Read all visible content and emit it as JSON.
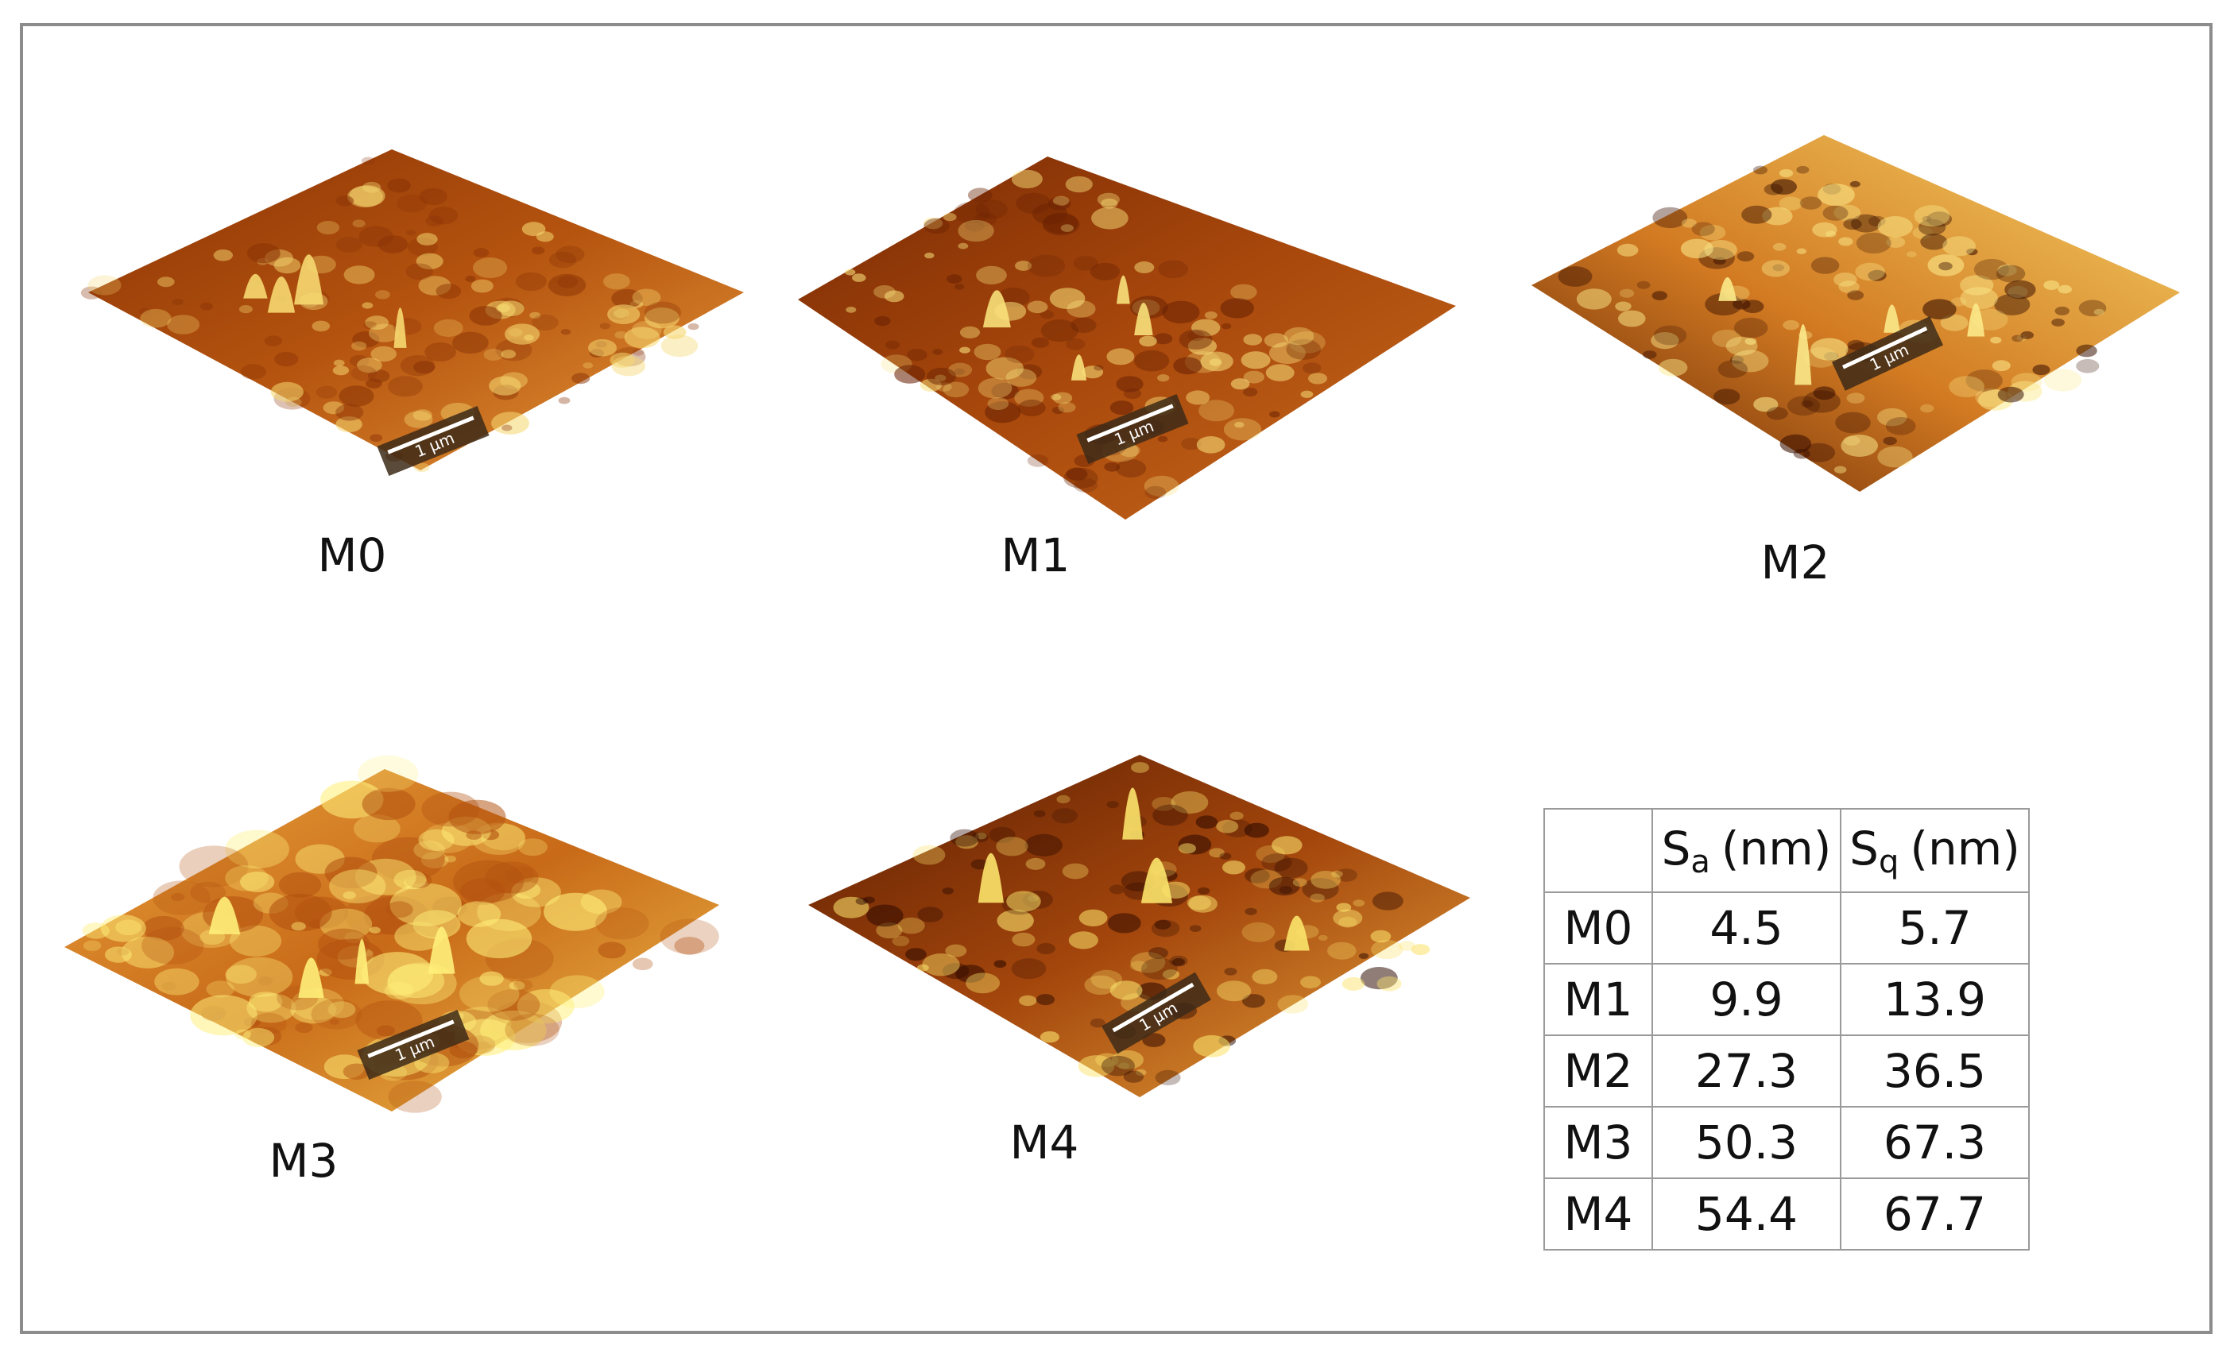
{
  "panels": [
    {
      "label": "M0",
      "scale_bar": "1 µm"
    },
    {
      "label": "M1",
      "scale_bar": "1 µm"
    },
    {
      "label": "M2",
      "scale_bar": "1 µm"
    },
    {
      "label": "M3",
      "scale_bar": "1 µm"
    },
    {
      "label": "M4",
      "scale_bar": "1 µm"
    }
  ],
  "table": {
    "columns": [
      {
        "symbol": "S",
        "subscript": "a",
        "unit": "(nm)"
      },
      {
        "symbol": "S",
        "subscript": "q",
        "unit": "(nm)"
      }
    ],
    "rows": [
      [
        "M0",
        4.5,
        5.7
      ],
      [
        "M1",
        9.9,
        13.9
      ],
      [
        "M2",
        27.3,
        36.5
      ],
      [
        "M3",
        50.3,
        67.3
      ],
      [
        "M4",
        54.4,
        67.7
      ]
    ]
  }
}
